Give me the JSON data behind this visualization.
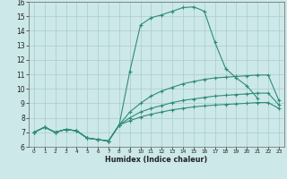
{
  "bg_color": "#cce8e8",
  "line_color": "#2e8b7a",
  "grid_color": "#aacccc",
  "xlabel": "Humidex (Indice chaleur)",
  "ylim": [
    6,
    16
  ],
  "xlim": [
    -0.5,
    23.5
  ],
  "yticks": [
    6,
    7,
    8,
    9,
    10,
    11,
    12,
    13,
    14,
    15,
    16
  ],
  "xticks": [
    0,
    1,
    2,
    3,
    4,
    5,
    6,
    7,
    8,
    9,
    10,
    11,
    12,
    13,
    14,
    15,
    16,
    17,
    18,
    19,
    20,
    21,
    22,
    23
  ],
  "lines": [
    {
      "x": [
        0,
        1,
        2,
        3,
        4,
        5,
        6,
        7,
        8,
        9,
        10,
        11,
        12,
        13,
        14,
        15,
        16,
        17,
        18,
        19,
        20,
        21
      ],
      "y": [
        7.0,
        7.35,
        7.0,
        7.2,
        7.1,
        6.6,
        6.5,
        6.4,
        7.5,
        11.2,
        14.4,
        14.9,
        15.1,
        15.35,
        15.6,
        15.65,
        15.35,
        13.2,
        11.4,
        10.75,
        10.2,
        9.35
      ]
    },
    {
      "x": [
        0,
        1,
        2,
        3,
        4,
        5,
        6,
        7,
        8,
        9,
        10,
        11,
        12,
        13,
        14,
        15,
        16,
        17,
        18,
        19,
        20,
        21,
        22,
        23
      ],
      "y": [
        7.0,
        7.35,
        7.0,
        7.2,
        7.1,
        6.6,
        6.5,
        6.4,
        7.5,
        8.4,
        9.0,
        9.5,
        9.85,
        10.1,
        10.35,
        10.5,
        10.65,
        10.75,
        10.8,
        10.85,
        10.9,
        10.95,
        10.95,
        9.2
      ]
    },
    {
      "x": [
        0,
        1,
        2,
        3,
        4,
        5,
        6,
        7,
        8,
        9,
        10,
        11,
        12,
        13,
        14,
        15,
        16,
        17,
        18,
        19,
        20,
        21,
        22,
        23
      ],
      "y": [
        7.0,
        7.35,
        7.0,
        7.2,
        7.1,
        6.6,
        6.5,
        6.4,
        7.5,
        8.0,
        8.4,
        8.65,
        8.85,
        9.05,
        9.2,
        9.3,
        9.4,
        9.5,
        9.55,
        9.6,
        9.65,
        9.7,
        9.7,
        8.9
      ]
    },
    {
      "x": [
        0,
        1,
        2,
        3,
        4,
        5,
        6,
        7,
        8,
        9,
        10,
        11,
        12,
        13,
        14,
        15,
        16,
        17,
        18,
        19,
        20,
        21,
        22,
        23
      ],
      "y": [
        7.0,
        7.35,
        7.0,
        7.2,
        7.1,
        6.6,
        6.5,
        6.4,
        7.5,
        7.8,
        8.05,
        8.25,
        8.4,
        8.55,
        8.65,
        8.75,
        8.82,
        8.88,
        8.92,
        8.96,
        9.0,
        9.05,
        9.05,
        8.65
      ]
    }
  ]
}
